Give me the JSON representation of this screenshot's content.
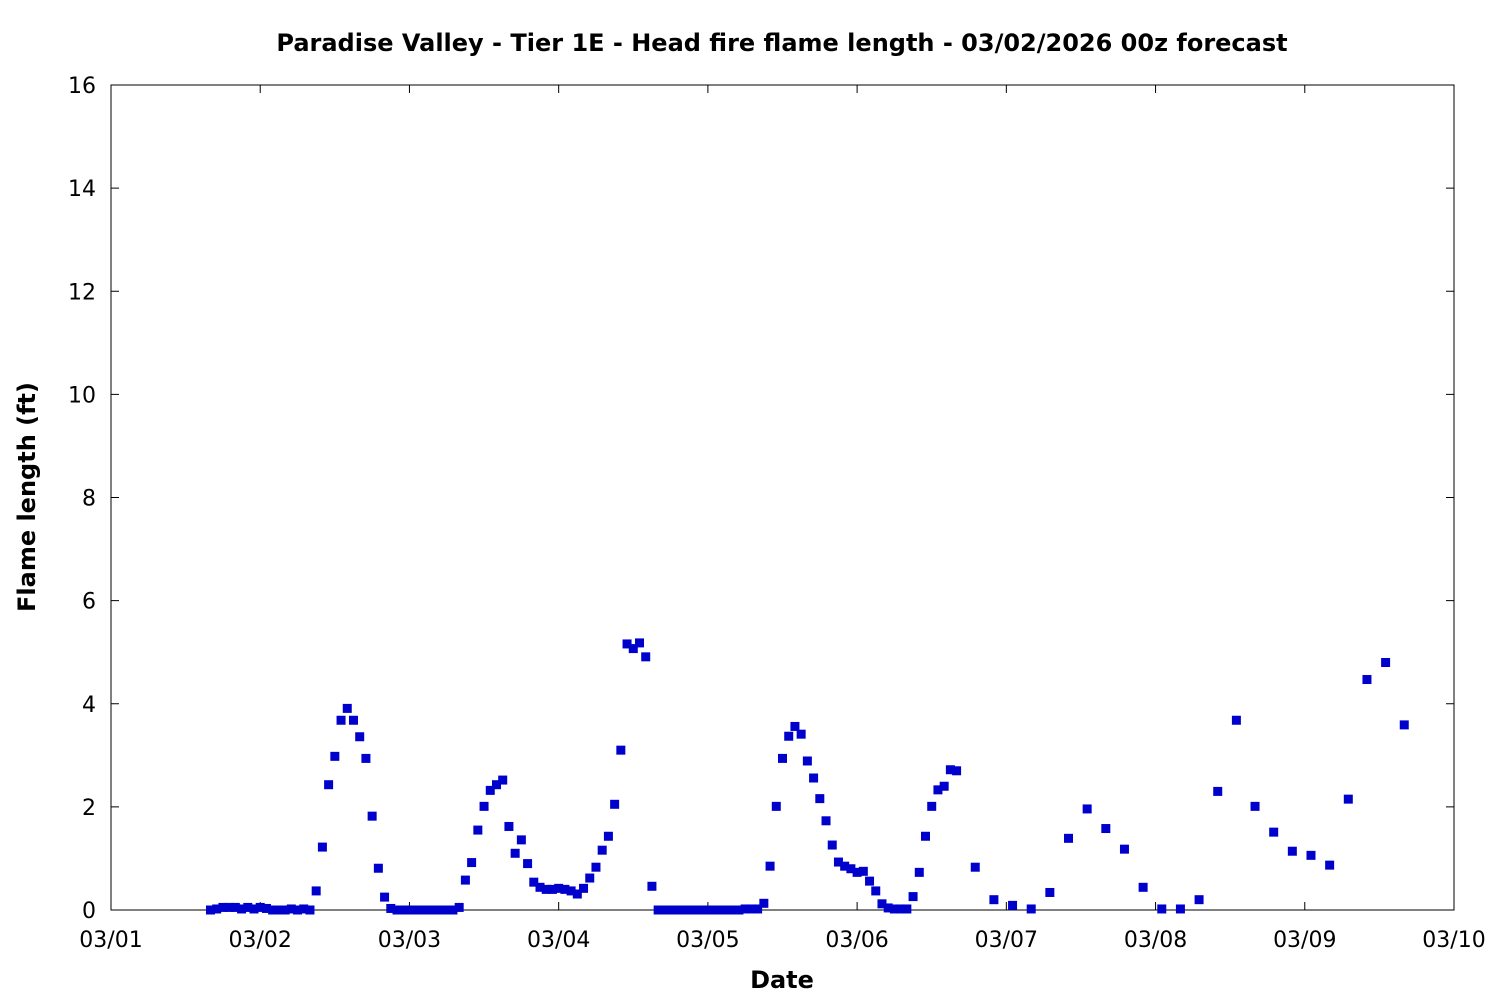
{
  "chart_data": {
    "type": "scatter",
    "title": "Paradise Valley - Tier 1E - Head fire flame length - 03/02/2026 00z forecast",
    "xlabel": "Date",
    "ylabel": "Flame length (ft)",
    "x_ticks": [
      "03/01",
      "03/02",
      "03/03",
      "03/04",
      "03/05",
      "03/06",
      "03/07",
      "03/08",
      "03/09",
      "03/10"
    ],
    "y_ticks": [
      "0",
      "2",
      "4",
      "6",
      "8",
      "10",
      "12",
      "14",
      "16"
    ],
    "xlim": [
      "03/01 00:00",
      "03/10 00:00"
    ],
    "ylim": [
      0,
      16
    ],
    "grid": false,
    "marker": "square",
    "color": "#0000cc",
    "series": [
      {
        "x": [
          "03/01 16:00",
          "03/01 17:00",
          "03/01 18:00",
          "03/01 19:00",
          "03/01 20:00",
          "03/01 21:00",
          "03/01 22:00",
          "03/01 23:00",
          "03/02 00:00",
          "03/02 01:00",
          "03/02 02:00",
          "03/02 03:00",
          "03/02 04:00",
          "03/02 05:00",
          "03/02 06:00",
          "03/02 07:00",
          "03/02 08:00",
          "03/02 09:00",
          "03/02 10:00",
          "03/02 11:00",
          "03/02 12:00",
          "03/02 13:00",
          "03/02 14:00",
          "03/02 15:00",
          "03/02 16:00",
          "03/02 17:00",
          "03/02 18:00",
          "03/02 19:00",
          "03/02 20:00",
          "03/02 21:00",
          "03/02 22:00",
          "03/02 23:00",
          "03/03 00:00",
          "03/03 01:00",
          "03/03 02:00",
          "03/03 03:00",
          "03/03 04:00",
          "03/03 05:00",
          "03/03 06:00",
          "03/03 07:00",
          "03/03 08:00",
          "03/03 09:00",
          "03/03 10:00",
          "03/03 11:00",
          "03/03 12:00",
          "03/03 13:00",
          "03/03 14:00",
          "03/03 15:00",
          "03/03 16:00",
          "03/03 17:00",
          "03/03 18:00",
          "03/03 19:00",
          "03/03 20:00",
          "03/03 21:00",
          "03/03 22:00",
          "03/03 23:00",
          "03/04 00:00",
          "03/04 01:00",
          "03/04 02:00",
          "03/04 03:00",
          "03/04 04:00",
          "03/04 05:00",
          "03/04 06:00",
          "03/04 07:00",
          "03/04 08:00",
          "03/04 09:00",
          "03/04 10:00",
          "03/04 11:00",
          "03/04 12:00",
          "03/04 13:00",
          "03/04 14:00",
          "03/04 15:00",
          "03/04 16:00",
          "03/04 17:00",
          "03/04 18:00",
          "03/04 19:00",
          "03/04 20:00",
          "03/04 21:00",
          "03/04 22:00",
          "03/04 23:00",
          "03/05 00:00",
          "03/05 01:00",
          "03/05 02:00",
          "03/05 03:00",
          "03/05 04:00",
          "03/05 05:00",
          "03/05 06:00",
          "03/05 07:00",
          "03/05 08:00",
          "03/05 09:00",
          "03/05 10:00",
          "03/05 11:00",
          "03/05 12:00",
          "03/05 13:00",
          "03/05 14:00",
          "03/05 15:00",
          "03/05 16:00",
          "03/05 17:00",
          "03/05 18:00",
          "03/05 19:00",
          "03/05 20:00",
          "03/05 21:00",
          "03/05 22:00",
          "03/05 23:00",
          "03/06 00:00",
          "03/06 01:00",
          "03/06 02:00",
          "03/06 03:00",
          "03/06 04:00",
          "03/06 05:00",
          "03/06 06:00",
          "03/06 07:00",
          "03/06 08:00",
          "03/06 09:00",
          "03/06 10:00",
          "03/06 11:00",
          "03/06 12:00",
          "03/06 13:00",
          "03/06 14:00",
          "03/06 15:00",
          "03/06 16:00",
          "03/06 19:00",
          "03/06 22:00",
          "03/07 01:00",
          "03/07 04:00",
          "03/07 07:00",
          "03/07 10:00",
          "03/07 13:00",
          "03/07 16:00",
          "03/07 19:00",
          "03/07 22:00",
          "03/08 01:00",
          "03/08 04:00",
          "03/08 07:00",
          "03/08 10:00",
          "03/08 13:00",
          "03/08 16:00",
          "03/08 19:00",
          "03/08 22:00",
          "03/09 01:00",
          "03/09 04:00",
          "03/09 07:00",
          "03/09 10:00",
          "03/09 13:00",
          "03/09 16:00"
        ],
        "y": [
          0.0,
          0.02,
          0.05,
          0.05,
          0.05,
          0.02,
          0.05,
          0.02,
          0.05,
          0.03,
          0.0,
          0.0,
          0.0,
          0.02,
          0.0,
          0.02,
          0.0,
          0.37,
          1.22,
          2.43,
          2.98,
          3.68,
          3.91,
          3.68,
          3.36,
          2.94,
          1.82,
          0.81,
          0.25,
          0.03,
          0.0,
          0.0,
          0.0,
          0.0,
          0.0,
          0.0,
          0.0,
          0.0,
          0.0,
          0.0,
          0.05,
          0.58,
          0.92,
          1.55,
          2.01,
          2.32,
          2.43,
          2.52,
          1.62,
          1.1,
          1.36,
          0.9,
          0.54,
          0.44,
          0.4,
          0.4,
          0.42,
          0.4,
          0.37,
          0.31,
          0.42,
          0.62,
          0.83,
          1.16,
          1.43,
          2.05,
          3.1,
          5.16,
          5.07,
          5.18,
          4.91,
          0.46,
          0.0,
          0.0,
          0.0,
          0.0,
          0.0,
          0.0,
          0.0,
          0.0,
          0.0,
          0.0,
          0.0,
          0.0,
          0.0,
          0.0,
          0.02,
          0.02,
          0.02,
          0.13,
          0.85,
          2.01,
          2.94,
          3.37,
          3.56,
          3.41,
          2.89,
          2.56,
          2.16,
          1.73,
          1.26,
          0.93,
          0.85,
          0.8,
          0.73,
          0.75,
          0.56,
          0.37,
          0.12,
          0.04,
          0.02,
          0.02,
          0.02,
          0.26,
          0.73,
          1.43,
          2.01,
          2.33,
          2.4,
          2.72,
          2.7,
          0.83,
          0.2,
          0.09,
          0.02,
          0.34,
          1.39,
          1.96,
          1.58,
          1.18,
          0.44,
          0.02,
          0.02,
          0.2,
          2.3,
          3.68,
          2.01,
          1.51,
          1.14,
          1.06,
          0.87,
          2.15,
          4.47,
          4.8,
          3.59
        ]
      }
    ]
  }
}
